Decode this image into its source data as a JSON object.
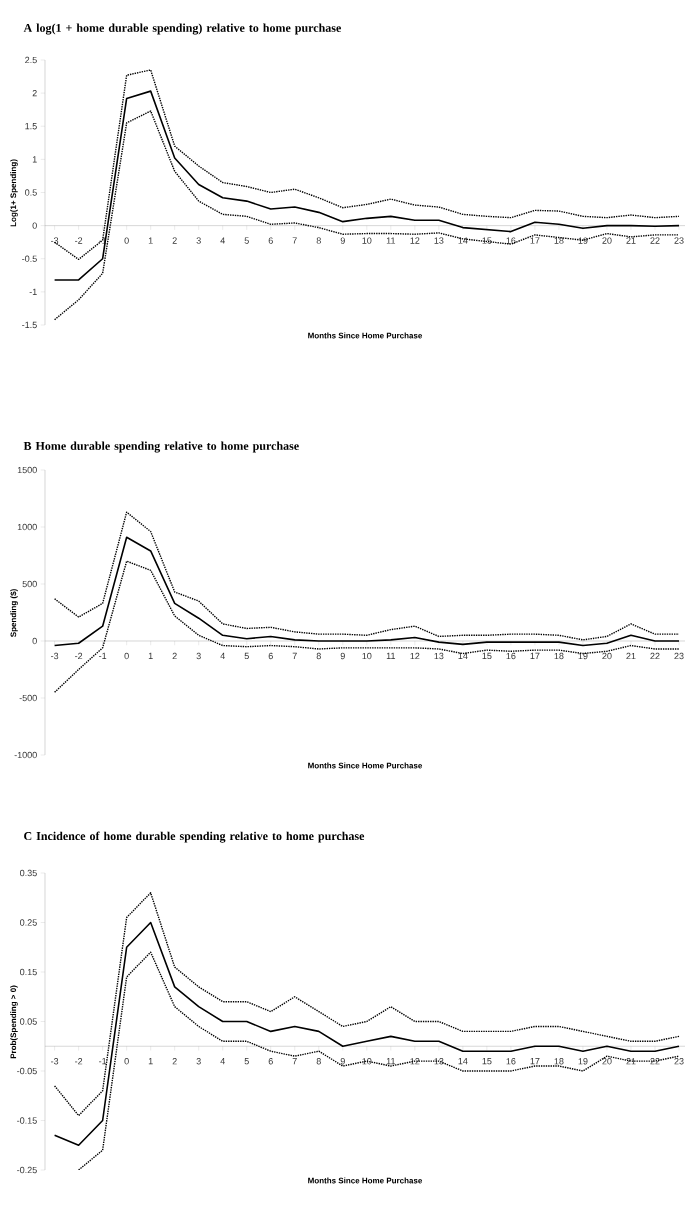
{
  "chart_data": [
    {
      "type": "line",
      "title": "A log(1 + home durable spending) relative to home purchase",
      "xlabel": "Months Since Home Purchase",
      "ylabel": "Log(1+ Spending)",
      "categories": [
        "-3",
        "-2",
        "-1",
        "0",
        "1",
        "2",
        "3",
        "4",
        "5",
        "6",
        "7",
        "8",
        "9",
        "10",
        "11",
        "12",
        "13",
        "14",
        "15",
        "16",
        "17",
        "18",
        "19",
        "20",
        "21",
        "22",
        "23"
      ],
      "series": [
        {
          "color": "#000000",
          "line_style": "solid",
          "values": [
            -0.82,
            -0.82,
            -0.5,
            1.92,
            2.03,
            1.02,
            0.62,
            0.42,
            0.37,
            0.25,
            0.28,
            0.2,
            0.06,
            0.11,
            0.14,
            0.08,
            0.08,
            -0.03,
            -0.06,
            -0.09,
            0.05,
            0.02,
            -0.04,
            0,
            0,
            -0.01,
            0
          ]
        },
        {
          "color": "#000000",
          "line_style": "dotted",
          "values": [
            -0.25,
            -0.51,
            -0.22,
            2.27,
            2.35,
            1.2,
            0.9,
            0.65,
            0.59,
            0.5,
            0.55,
            0.42,
            0.27,
            0.32,
            0.4,
            0.31,
            0.28,
            0.17,
            0.14,
            0.12,
            0.23,
            0.22,
            0.14,
            0.12,
            0.16,
            0.12,
            0.14
          ]
        },
        {
          "color": "#000000",
          "line_style": "dotted",
          "values": [
            -1.42,
            -1.12,
            -0.72,
            1.55,
            1.73,
            0.82,
            0.37,
            0.17,
            0.14,
            0.02,
            0.04,
            -0.03,
            -0.13,
            -0.12,
            -0.12,
            -0.13,
            -0.11,
            -0.2,
            -0.24,
            -0.28,
            -0.14,
            -0.18,
            -0.22,
            -0.12,
            -0.17,
            -0.14,
            -0.14
          ]
        }
      ],
      "ylim": [
        -1.5,
        2.5
      ],
      "yticks": [
        -1.5,
        -1,
        -0.5,
        0,
        0.5,
        1,
        1.5,
        2,
        2.5
      ]
    },
    {
      "type": "line",
      "title": "B Home durable spending relative to home purchase",
      "xlabel": "Months Since Home Purchase",
      "ylabel": "Spending ($)",
      "categories": [
        "-3",
        "-2",
        "-1",
        "0",
        "1",
        "2",
        "3",
        "4",
        "5",
        "6",
        "7",
        "8",
        "9",
        "10",
        "11",
        "12",
        "13",
        "14",
        "15",
        "16",
        "17",
        "18",
        "19",
        "20",
        "21",
        "22",
        "23"
      ],
      "series": [
        {
          "color": "#000000",
          "line_style": "solid",
          "values": [
            -40,
            -20,
            130,
            910,
            790,
            330,
            200,
            50,
            20,
            40,
            10,
            0,
            0,
            0,
            10,
            30,
            -10,
            -30,
            -10,
            -10,
            -10,
            -10,
            -40,
            -20,
            50,
            0,
            0
          ]
        },
        {
          "color": "#000000",
          "line_style": "dotted",
          "values": [
            370,
            210,
            330,
            1130,
            960,
            430,
            350,
            150,
            110,
            120,
            80,
            60,
            60,
            50,
            100,
            130,
            40,
            50,
            50,
            60,
            60,
            50,
            10,
            40,
            150,
            60,
            60
          ]
        },
        {
          "color": "#000000",
          "line_style": "dotted",
          "values": [
            -450,
            -250,
            -60,
            700,
            620,
            220,
            50,
            -40,
            -50,
            -40,
            -50,
            -70,
            -60,
            -60,
            -60,
            -60,
            -70,
            -110,
            -80,
            -90,
            -80,
            -80,
            -110,
            -90,
            -40,
            -70,
            -70
          ]
        }
      ],
      "ylim": [
        -1000,
        1500
      ],
      "yticks": [
        -1000,
        -500,
        0,
        500,
        1000,
        1500
      ]
    },
    {
      "type": "line",
      "title": "C Incidence of home durable spending relative to home purchase",
      "xlabel": "Months Since Home Purchase",
      "ylabel": "Prob(Spending > 0)",
      "categories": [
        "-3",
        "-2",
        "-1",
        "0",
        "1",
        "2",
        "3",
        "4",
        "5",
        "6",
        "7",
        "8",
        "9",
        "10",
        "11",
        "12",
        "13",
        "14",
        "15",
        "16",
        "17",
        "18",
        "19",
        "20",
        "21",
        "22",
        "23"
      ],
      "series": [
        {
          "color": "#000000",
          "line_style": "solid",
          "values": [
            -0.18,
            -0.2,
            -0.15,
            0.2,
            0.25,
            0.12,
            0.08,
            0.05,
            0.05,
            0.03,
            0.04,
            0.03,
            0,
            0.01,
            0.02,
            0.01,
            0.01,
            -0.01,
            -0.01,
            -0.01,
            0,
            0,
            -0.01,
            0,
            -0.01,
            -0.01,
            0
          ]
        },
        {
          "color": "#000000",
          "line_style": "dotted",
          "values": [
            -0.08,
            -0.14,
            -0.09,
            0.26,
            0.31,
            0.16,
            0.12,
            0.09,
            0.09,
            0.07,
            0.1,
            0.07,
            0.04,
            0.05,
            0.08,
            0.05,
            0.05,
            0.03,
            0.03,
            0.03,
            0.04,
            0.04,
            0.03,
            0.02,
            0.01,
            0.01,
            0.02
          ]
        },
        {
          "color": "#000000",
          "line_style": "dotted",
          "values": [
            null,
            -0.25,
            -0.21,
            0.14,
            0.19,
            0.08,
            0.04,
            0.01,
            0.01,
            -0.01,
            -0.02,
            -0.01,
            -0.04,
            -0.03,
            -0.04,
            -0.03,
            -0.03,
            -0.05,
            -0.05,
            -0.05,
            -0.04,
            -0.04,
            -0.05,
            -0.02,
            -0.03,
            -0.03,
            -0.02
          ]
        }
      ],
      "ylim": [
        -0.25,
        0.35
      ],
      "yticks": [
        -0.25,
        -0.15,
        -0.05,
        0.05,
        0.15,
        0.25,
        0.35
      ]
    }
  ]
}
